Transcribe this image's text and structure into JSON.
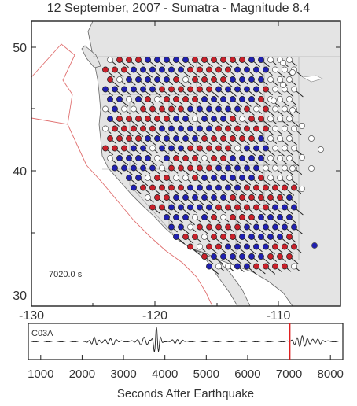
{
  "title": "12 September, 2007 - Sumatra - Magnitude 8.4",
  "map": {
    "lat_ticks": [
      "50",
      "40",
      "30"
    ],
    "lon_ticks": [
      "-130",
      "-120",
      "-110"
    ],
    "time_label": "7020.0 s",
    "colors": {
      "up": "#c8202a",
      "down": "#2020b0",
      "neutral_stroke": "#555555",
      "land": "#e4e4e4",
      "ocean": "#ffffff",
      "boundary": "#e07070"
    }
  },
  "seismogram": {
    "station": "C03A",
    "x_ticks": [
      "1000",
      "2000",
      "3000",
      "4000",
      "5000",
      "6000",
      "7000",
      "8000"
    ],
    "xlabel": "Seconds After Earthquake",
    "current_time": 7020,
    "marker_color": "#e02020"
  }
}
